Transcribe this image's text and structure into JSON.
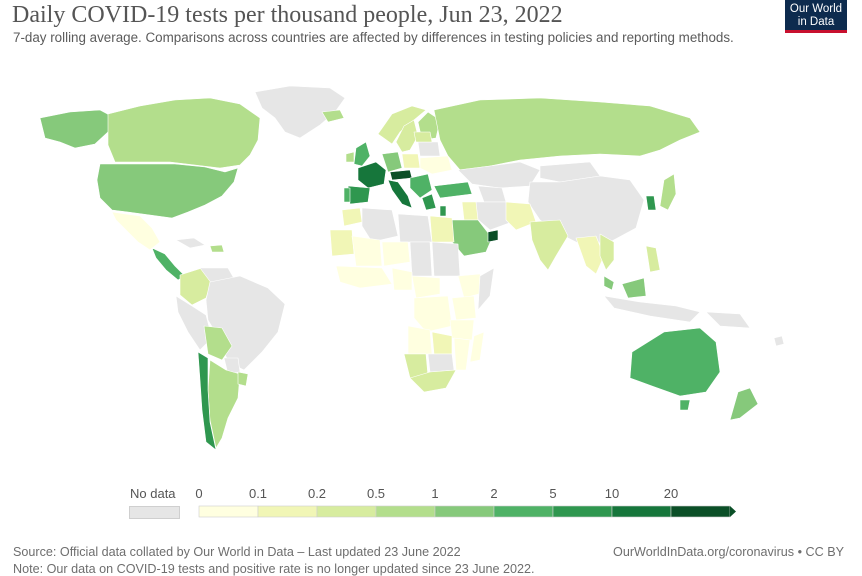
{
  "header": {
    "title": "Daily COVID-19 tests per thousand people, Jun 23, 2022",
    "subtitle": "7-day rolling average. Comparisons across countries are affected by differences in testing policies and reporting methods."
  },
  "logo": {
    "line1": "Our World",
    "line2": "in Data"
  },
  "legend": {
    "no_data_label": "No data",
    "no_data_color": "#e6e6e6",
    "tick_labels": [
      "0",
      "0.1",
      "0.2",
      "0.5",
      "1",
      "2",
      "5",
      "10",
      "20"
    ],
    "bin_colors": [
      "#ffffe0",
      "#f1f6b6",
      "#d7ec9f",
      "#b3de8c",
      "#86c97b",
      "#4fb266",
      "#2f974f",
      "#16763b",
      "#0b4f27"
    ]
  },
  "map_colors": {
    "ocean": "#ffffff",
    "border": "#ffffff"
  },
  "footer": {
    "source": "Source: Official data collated by Our World in Data – Last updated 23 June 2022",
    "note": "Note: Our data on COVID-19 tests and positive rate is no longer updated since 23 June 2022.",
    "credit": "OurWorldInData.org/coronavirus • CC BY"
  }
}
